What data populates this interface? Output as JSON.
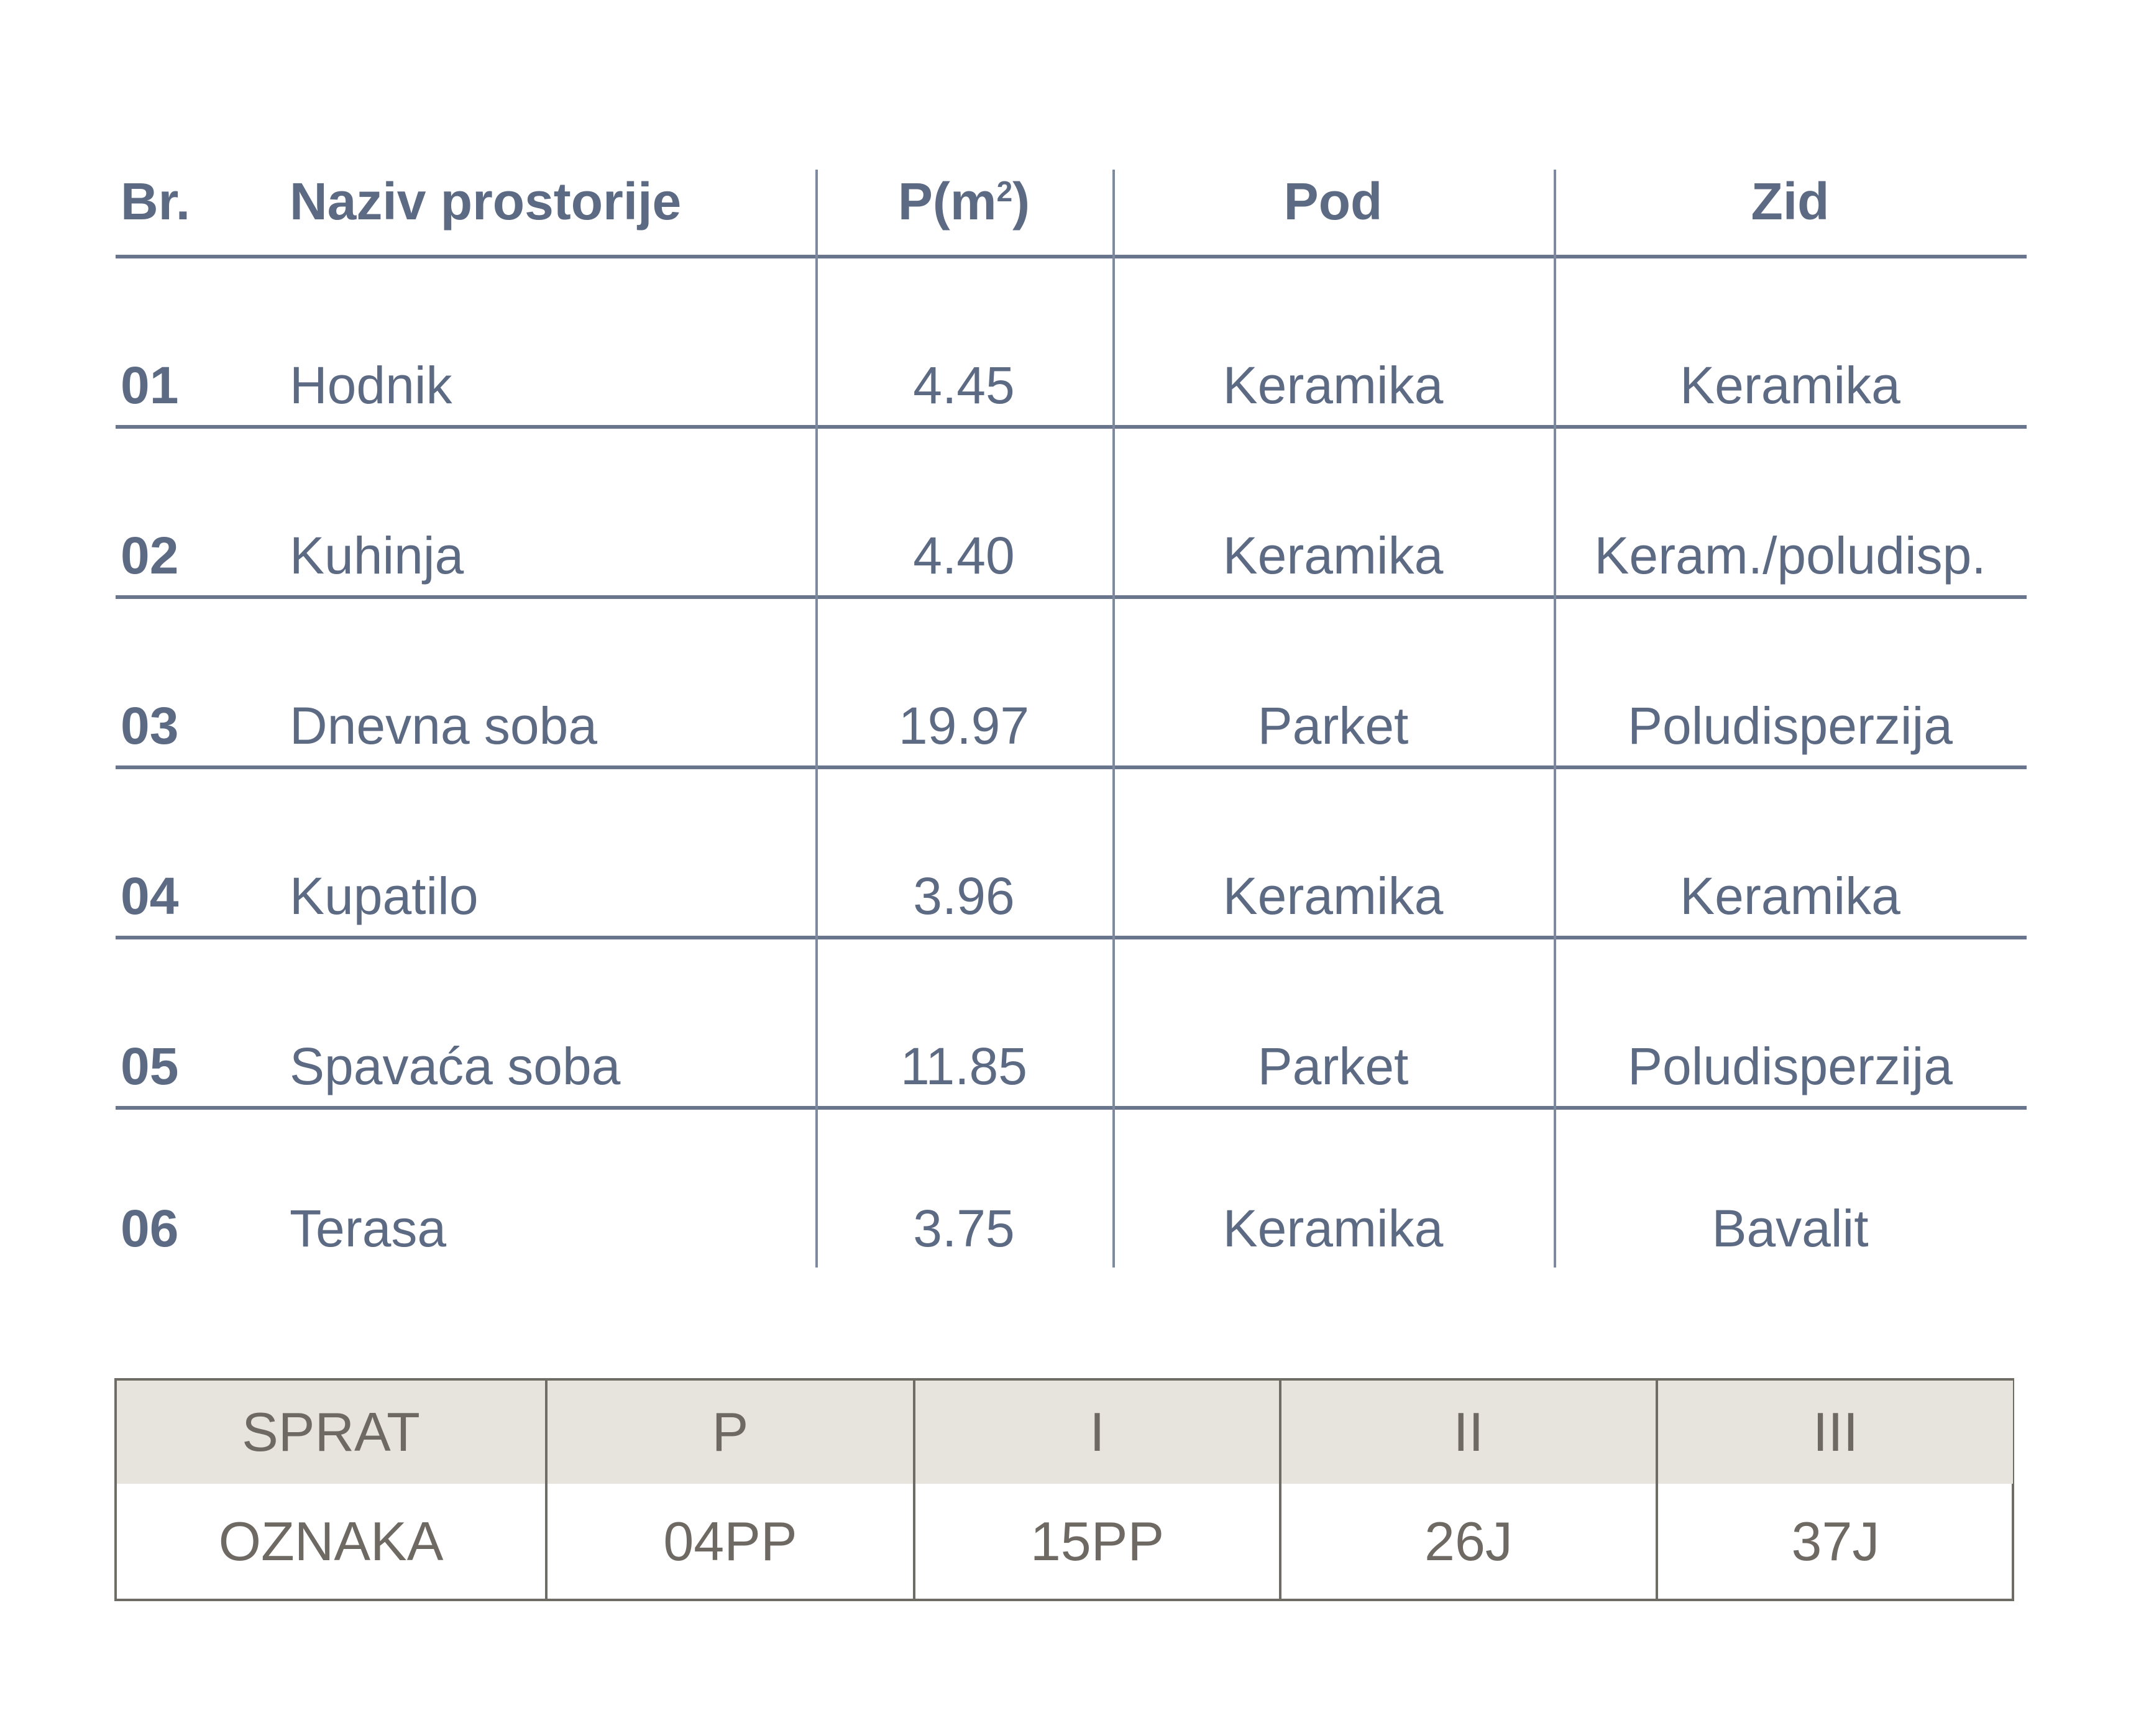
{
  "colors": {
    "rooms_text": "#5C6A83",
    "rooms_line_horizontal": "#68758D",
    "rooms_line_vertical": "#7C899E",
    "floor_text": "#6E6A63",
    "floor_border": "#6F6B65",
    "floor_header_bg": "#E7E3DD",
    "page_bg": "#FFFFFF"
  },
  "rooms_table": {
    "header": {
      "br": "Br.",
      "naziv": "Naziv prostorije",
      "p_main": "P(m",
      "p_sup": "2",
      "p_end": ")",
      "pod": "Pod",
      "zid": "Zid"
    },
    "rows": [
      {
        "br": "01",
        "naziv": "Hodnik",
        "p": "4.45",
        "pod": "Keramika",
        "zid": "Keramika"
      },
      {
        "br": "02",
        "naziv": "Kuhinja",
        "p": "4.40",
        "pod": "Keramika",
        "zid": "Keram./poludisp."
      },
      {
        "br": "03",
        "naziv": "Dnevna soba",
        "p": "19.97",
        "pod": "Parket",
        "zid": "Poludisperzija"
      },
      {
        "br": "04",
        "naziv": "Kupatilo",
        "p": "3.96",
        "pod": "Keramika",
        "zid": "Keramika"
      },
      {
        "br": "05",
        "naziv": "Spavaća soba",
        "p": "11.85",
        "pod": "Parket",
        "zid": "Poludisperzija"
      },
      {
        "br": "06",
        "naziv": "Terasa",
        "p": "3.75",
        "pod": "Keramika",
        "zid": "Bavalit"
      }
    ]
  },
  "floor_table": {
    "row_labels": {
      "sprat": "SPRAT",
      "oznaka": "OZNAKA"
    },
    "floors": [
      "P",
      "I",
      "II",
      "III"
    ],
    "codes": [
      "04PP",
      "15PP",
      "26J",
      "37J"
    ]
  }
}
